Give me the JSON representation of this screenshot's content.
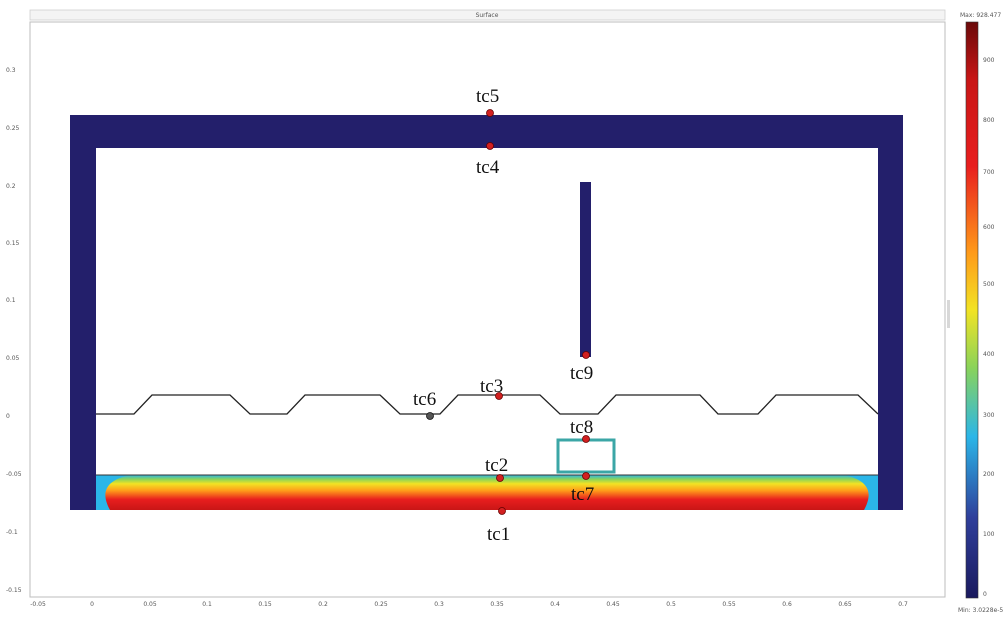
{
  "window": {
    "title": "Surface"
  },
  "plot": {
    "x_ticks": [
      "-0.05",
      "0",
      "0.05",
      "0.1",
      "0.15",
      "0.2",
      "0.25",
      "0.3",
      "0.35",
      "0.4",
      "0.45",
      "0.5",
      "0.55",
      "0.6",
      "0.65",
      "0.7"
    ],
    "y_ticks": [
      "0.3",
      "0.25",
      "0.2",
      "0.15",
      "0.1",
      "0.05",
      "0",
      "-0.05",
      "-0.1",
      "-0.15"
    ]
  },
  "colorbar": {
    "max_label": "Max: 928.477",
    "min_label": "Min: 3.0228e-5",
    "ticks": [
      "900",
      "800",
      "700",
      "600",
      "500",
      "400",
      "300",
      "200",
      "100",
      "0"
    ],
    "colors": {
      "top": "#6b0a0a",
      "red": "#e81e1e",
      "orange": "#ff9a1a",
      "yellow": "#f2e324",
      "green": "#8ad35a",
      "cyan": "#2bb6e8",
      "blue": "#2f3f9b",
      "bottom": "#1a1a5e"
    }
  },
  "colors": {
    "cold": "#231f6b",
    "box": "#3ba6a6",
    "sensor": "#d22020"
  },
  "thermocouples": [
    {
      "label": "tc5"
    },
    {
      "label": "tc4"
    },
    {
      "label": "tc9"
    },
    {
      "label": "tc6"
    },
    {
      "label": "tc3"
    },
    {
      "label": "tc8"
    },
    {
      "label": "tc2"
    },
    {
      "label": "tc7"
    },
    {
      "label": "tc1"
    }
  ]
}
